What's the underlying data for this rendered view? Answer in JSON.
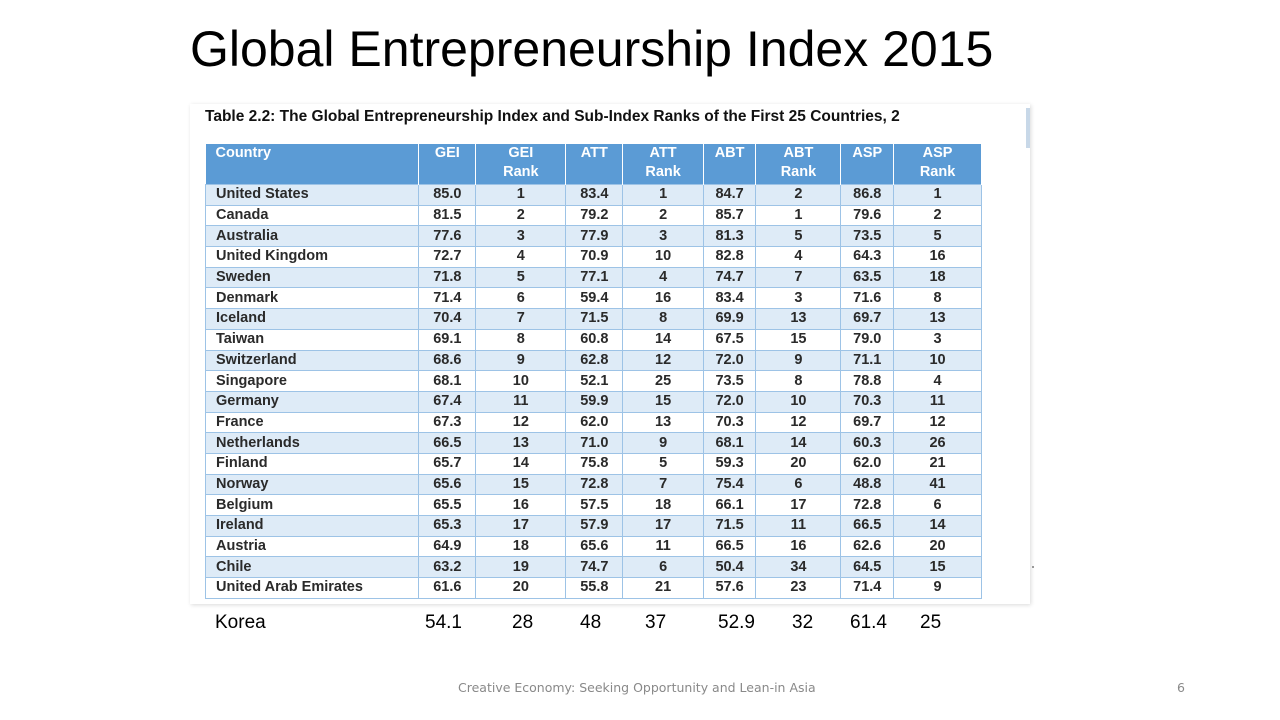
{
  "slide": {
    "title": "Global Entrepreneurship Index 2015",
    "footer": "Creative Economy: Seeking Opportunity and Lean-in Asia",
    "slide_number": "6"
  },
  "table": {
    "caption": "Table 2.2: The Global Entrepreneurship Index and Sub-Index Ranks of the First 25 Countries, 2",
    "header_color": "#5b9bd5",
    "stripe_color": "#deebf7",
    "columns": [
      {
        "line1": "Country",
        "line2": ""
      },
      {
        "line1": "GEI",
        "line2": ""
      },
      {
        "line1": "GEI",
        "line2": "Rank"
      },
      {
        "line1": "ATT",
        "line2": ""
      },
      {
        "line1": "ATT",
        "line2": "Rank"
      },
      {
        "line1": "ABT",
        "line2": ""
      },
      {
        "line1": "ABT",
        "line2": "Rank"
      },
      {
        "line1": "ASP",
        "line2": ""
      },
      {
        "line1": "ASP",
        "line2": "Rank"
      }
    ],
    "rows": [
      [
        "United States",
        "85.0",
        "1",
        "83.4",
        "1",
        "84.7",
        "2",
        "86.8",
        "1"
      ],
      [
        "Canada",
        "81.5",
        "2",
        "79.2",
        "2",
        "85.7",
        "1",
        "79.6",
        "2"
      ],
      [
        "Australia",
        "77.6",
        "3",
        "77.9",
        "3",
        "81.3",
        "5",
        "73.5",
        "5"
      ],
      [
        "United Kingdom",
        "72.7",
        "4",
        "70.9",
        "10",
        "82.8",
        "4",
        "64.3",
        "16"
      ],
      [
        "Sweden",
        "71.8",
        "5",
        "77.1",
        "4",
        "74.7",
        "7",
        "63.5",
        "18"
      ],
      [
        "Denmark",
        "71.4",
        "6",
        "59.4",
        "16",
        "83.4",
        "3",
        "71.6",
        "8"
      ],
      [
        "Iceland",
        "70.4",
        "7",
        "71.5",
        "8",
        "69.9",
        "13",
        "69.7",
        "13"
      ],
      [
        "Taiwan",
        "69.1",
        "8",
        "60.8",
        "14",
        "67.5",
        "15",
        "79.0",
        "3"
      ],
      [
        "Switzerland",
        "68.6",
        "9",
        "62.8",
        "12",
        "72.0",
        "9",
        "71.1",
        "10"
      ],
      [
        "Singapore",
        "68.1",
        "10",
        "52.1",
        "25",
        "73.5",
        "8",
        "78.8",
        "4"
      ],
      [
        "Germany",
        "67.4",
        "11",
        "59.9",
        "15",
        "72.0",
        "10",
        "70.3",
        "11"
      ],
      [
        "France",
        "67.3",
        "12",
        "62.0",
        "13",
        "70.3",
        "12",
        "69.7",
        "12"
      ],
      [
        "Netherlands",
        "66.5",
        "13",
        "71.0",
        "9",
        "68.1",
        "14",
        "60.3",
        "26"
      ],
      [
        "Finland",
        "65.7",
        "14",
        "75.8",
        "5",
        "59.3",
        "20",
        "62.0",
        "21"
      ],
      [
        "Norway",
        "65.6",
        "15",
        "72.8",
        "7",
        "75.4",
        "6",
        "48.8",
        "41"
      ],
      [
        "Belgium",
        "65.5",
        "16",
        "57.5",
        "18",
        "66.1",
        "17",
        "72.8",
        "6"
      ],
      [
        "Ireland",
        "65.3",
        "17",
        "57.9",
        "17",
        "71.5",
        "11",
        "66.5",
        "14"
      ],
      [
        "Austria",
        "64.9",
        "18",
        "65.6",
        "11",
        "66.5",
        "16",
        "62.6",
        "20"
      ],
      [
        "Chile",
        "63.2",
        "19",
        "74.7",
        "6",
        "50.4",
        "34",
        "64.5",
        "15"
      ],
      [
        "United Arab Emirates",
        "61.6",
        "20",
        "55.8",
        "21",
        "57.6",
        "23",
        "71.4",
        "9"
      ]
    ]
  },
  "korea": {
    "country": "Korea",
    "gei": "54.1",
    "gei_rank": "28",
    "att": "48",
    "att_rank": "37",
    "abt": "52.9",
    "abt_rank": "32",
    "asp": "61.4",
    "asp_rank": "25"
  }
}
